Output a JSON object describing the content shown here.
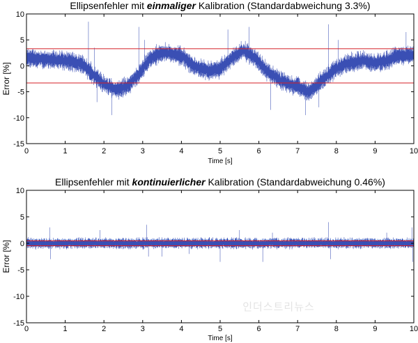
{
  "chart_data": [
    {
      "type": "line",
      "title_parts": [
        "Ellipsenfehler mit ",
        "einmaliger",
        " Kalibration (Standardabweichung 3.3%)"
      ],
      "xlabel": "Time [s]",
      "ylabel": "Error [%]",
      "xlim": [
        0,
        10
      ],
      "ylim": [
        -15,
        10
      ],
      "xticks": [
        0,
        1,
        2,
        3,
        4,
        5,
        6,
        7,
        8,
        9,
        10
      ],
      "yticks": [
        -15,
        -10,
        -5,
        0,
        5,
        10
      ],
      "grid": false,
      "legend": "none",
      "hlines": [
        3.3,
        -3.3
      ],
      "series": [
        {
          "color": "#3a4fb4",
          "noise_amplitude": 2.2,
          "envelope": {
            "x": [
              0,
              0.5,
              1.0,
              1.4,
              1.7,
              2.0,
              2.3,
              2.6,
              2.9,
              3.2,
              3.5,
              4.0,
              4.3,
              4.7,
              5.0,
              5.3,
              5.6,
              5.9,
              6.2,
              6.6,
              7.0,
              7.3,
              7.6,
              8.0,
              8.3,
              8.7,
              9.0,
              9.3,
              9.6,
              10.0
            ],
            "y": [
              1.5,
              1.3,
              1.0,
              0.5,
              -1.5,
              -3.5,
              -4.5,
              -4.0,
              -1.5,
              1.5,
              2.5,
              2.0,
              0.0,
              -1.0,
              -0.5,
              1.5,
              3.0,
              1.5,
              -1.0,
              -3.0,
              -4.0,
              -5.0,
              -3.0,
              -0.5,
              0.5,
              1.0,
              0.5,
              1.0,
              2.0,
              2.0
            ]
          },
          "spikes": [
            {
              "x": 1.6,
              "y": 8.5
            },
            {
              "x": 1.75,
              "y": 3.5
            },
            {
              "x": 1.82,
              "y": -7.0
            },
            {
              "x": 2.2,
              "y": -9.5
            },
            {
              "x": 2.9,
              "y": 7.5
            },
            {
              "x": 3.05,
              "y": 5.0
            },
            {
              "x": 5.2,
              "y": 7.0
            },
            {
              "x": 5.75,
              "y": 7.5
            },
            {
              "x": 7.2,
              "y": -9.5
            },
            {
              "x": 7.55,
              "y": -8.0
            },
            {
              "x": 7.8,
              "y": 8.0
            },
            {
              "x": 8.05,
              "y": 5.0
            },
            {
              "x": 9.8,
              "y": 6.5
            },
            {
              "x": 9.95,
              "y": 3.5
            },
            {
              "x": 6.3,
              "y": -8.5
            }
          ]
        }
      ]
    },
    {
      "type": "line",
      "title_parts": [
        "Ellipsenfehler mit ",
        "kontinuierlicher",
        " Kalibration (Standardabweichung 0.46%)"
      ],
      "xlabel": "Time [s]",
      "ylabel": "Error [%]",
      "xlim": [
        0,
        10
      ],
      "ylim": [
        -15,
        10
      ],
      "xticks": [
        0,
        1,
        2,
        3,
        4,
        5,
        6,
        7,
        8,
        9,
        10
      ],
      "yticks": [
        -15,
        -10,
        -5,
        0,
        5,
        10
      ],
      "grid": false,
      "legend": "none",
      "hlines": [
        0.46,
        -0.46
      ],
      "series": [
        {
          "color": "#3a4fb4",
          "noise_amplitude": 1.2,
          "envelope": {
            "x": [
              0,
              10
            ],
            "y": [
              0,
              0
            ]
          },
          "spikes": [
            {
              "x": 0.6,
              "y": 3.0
            },
            {
              "x": 0.62,
              "y": -3.0
            },
            {
              "x": 1.9,
              "y": 2.5
            },
            {
              "x": 3.1,
              "y": 3.5
            },
            {
              "x": 3.15,
              "y": -2.5
            },
            {
              "x": 3.5,
              "y": -2.5
            },
            {
              "x": 4.2,
              "y": -2.0
            },
            {
              "x": 5.0,
              "y": -3.5
            },
            {
              "x": 5.5,
              "y": 2.5
            },
            {
              "x": 6.1,
              "y": -3.5
            },
            {
              "x": 6.35,
              "y": 2.0
            },
            {
              "x": 7.8,
              "y": 4.0
            },
            {
              "x": 7.85,
              "y": -3.0
            },
            {
              "x": 9.3,
              "y": 2.0
            },
            {
              "x": 9.95,
              "y": 3.0
            },
            {
              "x": 9.97,
              "y": -3.5
            }
          ]
        }
      ]
    }
  ],
  "watermark": "인더스트리뉴스"
}
